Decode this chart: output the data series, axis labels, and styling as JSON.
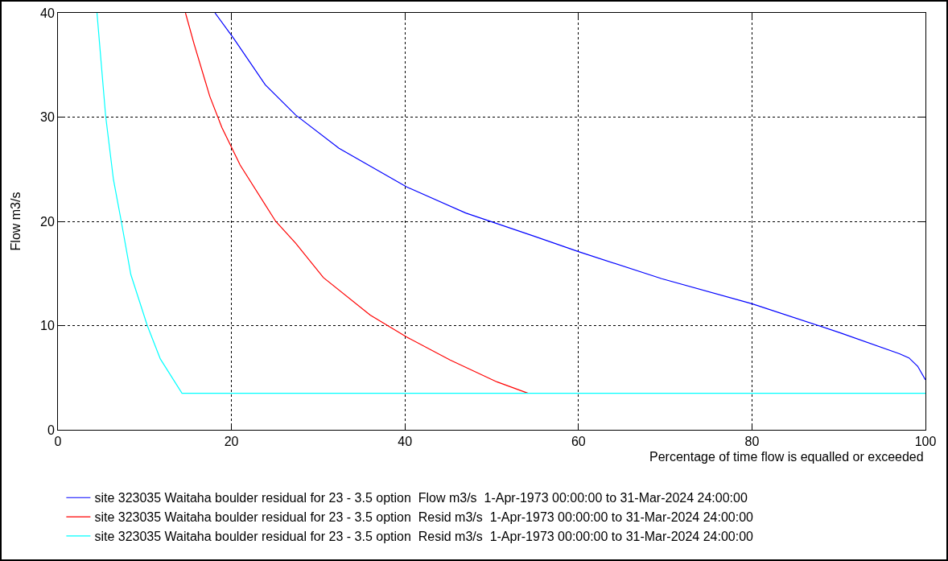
{
  "chart_data": {
    "type": "line",
    "xlabel": "Percentage of time flow is equalled or exceeded",
    "ylabel": "Flow m3/s",
    "xlim": [
      0,
      100
    ],
    "xticks": [
      0,
      20,
      40,
      60,
      80,
      100
    ],
    "ylim": [
      0,
      40
    ],
    "yticks": [
      0,
      10,
      20,
      30,
      40
    ],
    "grid": true,
    "legend": "bottom",
    "line_style": "solid",
    "marker": "none",
    "series": [
      {
        "name": "site 323035 Waitaha boulder residual for 23 - 3.5 option  Flow m3/s  1-Apr-1973 00:00:00 to 31-Mar-2024 24:00:00",
        "color": "#0000ff",
        "x": [
          18.1,
          20.3,
          23.9,
          27.4,
          32.4,
          40.2,
          47.0,
          54.8,
          60,
          69.6,
          80,
          90.2,
          97.0,
          98.1,
          99.1,
          100
        ],
        "values": [
          40,
          37.5,
          33.1,
          30.2,
          27.0,
          23.3,
          20.8,
          18.6,
          17.1,
          14.5,
          12.1,
          9.3,
          7.3,
          6.9,
          6.1,
          4.8
        ]
      },
      {
        "name": "site 323035 Waitaha boulder residual for 23 - 3.5 option  Resid m3/s  1-Apr-1973 00:00:00 to 31-Mar-2024 24:00:00",
        "color": "#ff0000",
        "x": [
          14.7,
          15.7,
          17.5,
          18.9,
          21.0,
          25.1,
          27.4,
          30.6,
          36.0,
          40.2,
          45.2,
          50.6,
          54.2
        ],
        "values": [
          40,
          37.0,
          32.0,
          29.0,
          25.4,
          20.0,
          17.9,
          14.6,
          11.0,
          8.9,
          6.7,
          4.6,
          3.5
        ]
      },
      {
        "name": "site 323035 Waitaha boulder residual for 23 - 3.5 option  Resid m3/s  1-Apr-1973 00:00:00 to 31-Mar-2024 24:00:00",
        "color": "#00ffff",
        "x": [
          4.5,
          5.5,
          6.4,
          7.3,
          8.4,
          10.3,
          11.8,
          14.3,
          100
        ],
        "values": [
          40,
          30.1,
          24.0,
          20.0,
          14.9,
          10.0,
          6.8,
          3.5,
          3.5
        ]
      }
    ]
  }
}
